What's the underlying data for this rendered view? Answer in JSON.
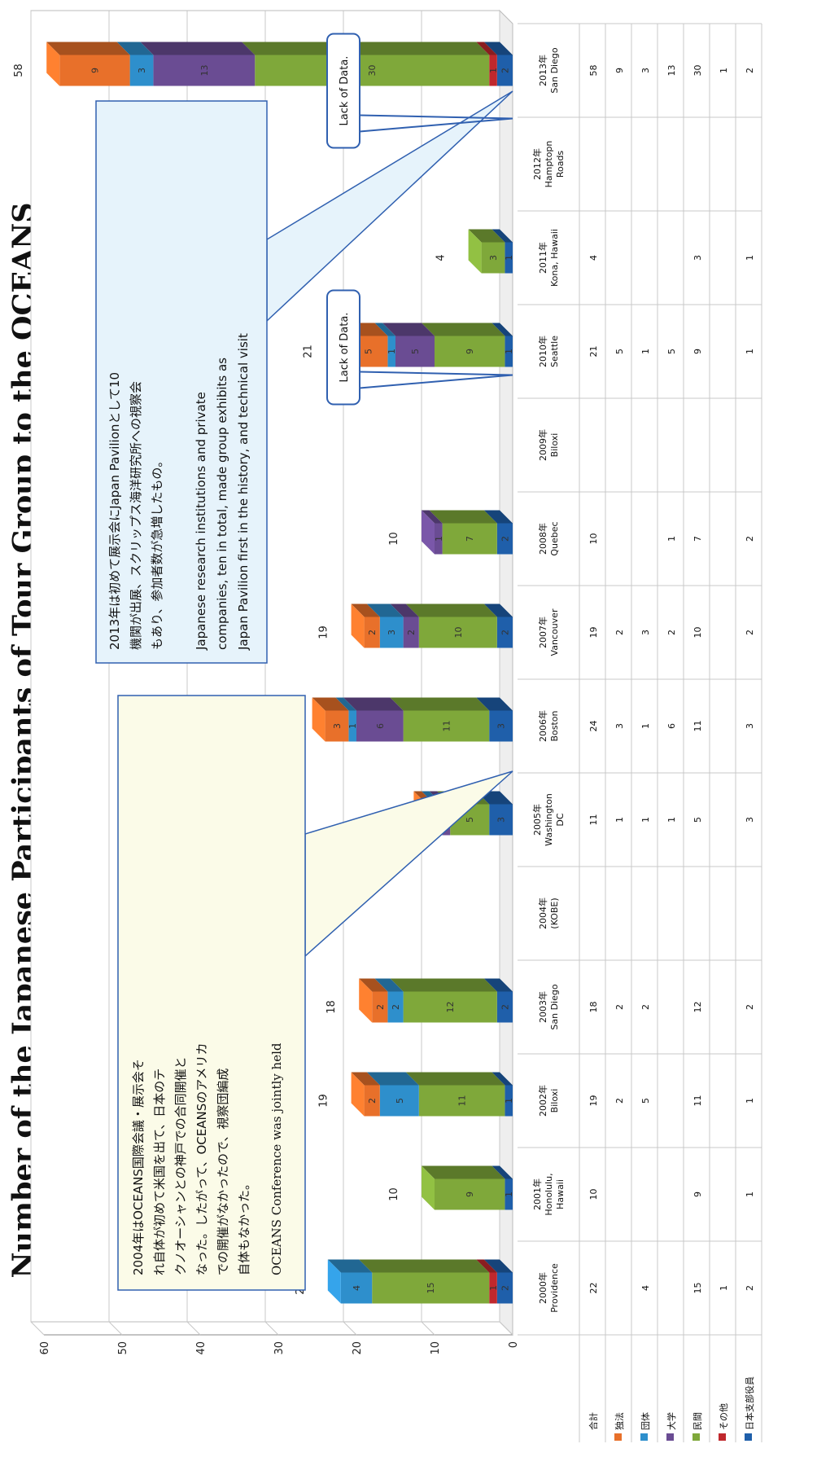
{
  "chart_data": {
    "type": "bar",
    "stacked": true,
    "title": "Number of the Japanese Participants of Tour Group to the OCEANS",
    "ylim": [
      0,
      60
    ],
    "yticks": [
      0,
      10,
      20,
      30,
      40,
      50,
      60
    ],
    "categories": [
      "2000年 Providence",
      "2001年 Honolulu, Hawaii",
      "2002年 Biloxi",
      "2003年 San Diego",
      "2004年 (KOBE)",
      "2005年 Washington DC",
      "2006年 Boston",
      "2007年 Vancouver",
      "2008年 Quebec",
      "2009年 Biloxi",
      "2010年 Seattle",
      "2011年 Kona, Hawaii",
      "2012年 Hamptopn Roads",
      "2013年 San Diego"
    ],
    "category_lines": [
      [
        "2000年",
        "Providence"
      ],
      [
        "2001年",
        "Honolulu,",
        "Hawaii"
      ],
      [
        "2002年",
        "Biloxi"
      ],
      [
        "2003年",
        "San Diego"
      ],
      [
        "2004年",
        "(KOBE)"
      ],
      [
        "2005年",
        "Washington",
        "DC"
      ],
      [
        "2006年",
        "Boston"
      ],
      [
        "2007年",
        "Vancouver"
      ],
      [
        "2008年",
        "Quebec"
      ],
      [
        "2009年",
        "Biloxi"
      ],
      [
        "2010年",
        "Seattle"
      ],
      [
        "2011年",
        "Kona, Hawaii"
      ],
      [
        "2012年",
        "Hamptopn",
        "Roads"
      ],
      [
        "2013年",
        "San Diego"
      ]
    ],
    "totals_label": "合計",
    "totals": [
      22,
      10,
      19,
      18,
      null,
      11,
      24,
      19,
      10,
      null,
      21,
      4,
      null,
      58
    ],
    "series": [
      {
        "name": "日本支部役員",
        "color": "#1f5faa",
        "values": [
          2,
          1,
          1,
          2,
          null,
          3,
          3,
          2,
          2,
          null,
          1,
          1,
          null,
          2
        ]
      },
      {
        "name": "その他",
        "color": "#c0282d",
        "values": [
          1,
          null,
          null,
          null,
          null,
          null,
          null,
          null,
          null,
          null,
          null,
          null,
          null,
          1
        ]
      },
      {
        "name": "民間",
        "color": "#7fa83a",
        "values": [
          15,
          9,
          11,
          12,
          null,
          5,
          11,
          10,
          7,
          null,
          9,
          3,
          null,
          30
        ]
      },
      {
        "name": "大学",
        "color": "#6a4c93",
        "values": [
          null,
          null,
          null,
          null,
          null,
          1,
          6,
          2,
          1,
          null,
          5,
          null,
          null,
          13
        ]
      },
      {
        "name": "団体",
        "color": "#2e8fcc",
        "values": [
          4,
          null,
          5,
          2,
          null,
          1,
          1,
          3,
          null,
          null,
          1,
          null,
          null,
          3
        ]
      },
      {
        "name": "独法",
        "color": "#e8702a",
        "values": [
          null,
          null,
          2,
          2,
          null,
          1,
          3,
          2,
          null,
          null,
          5,
          null,
          null,
          9
        ]
      }
    ],
    "table_rows_order": [
      "独法",
      "団体",
      "大学",
      "民間",
      "その他",
      "日本支部役員"
    ]
  },
  "annotations": {
    "note_2013_ja": [
      "2013年は初めて展示会にJapan Pavilionとして10",
      "機関が出展、スクリップス海洋研究所への視察会",
      "もあり、参加者数が急増したもの。"
    ],
    "note_2013_en": [
      "Japanese research institutions and private",
      "companies, ten in total,  made group exhibits as",
      "Japan Pavilion first in the history, and technical visit"
    ],
    "note_2004_ja": [
      "2004年はOCEANS国際会議・展示会そ",
      "れ自体が初めて米国を出て、日本のテ",
      "クノオーシャンとの神戸での合同開催と",
      "なった。したがって、OCEANSのアメリカ",
      "での開催がなかったので、視察団編成",
      "自体もなかった。"
    ],
    "note_2004_en": "OCEANS Conference was jointly held",
    "lack_2009": "Lack of Data.",
    "lack_2012": "Lack of Data."
  }
}
